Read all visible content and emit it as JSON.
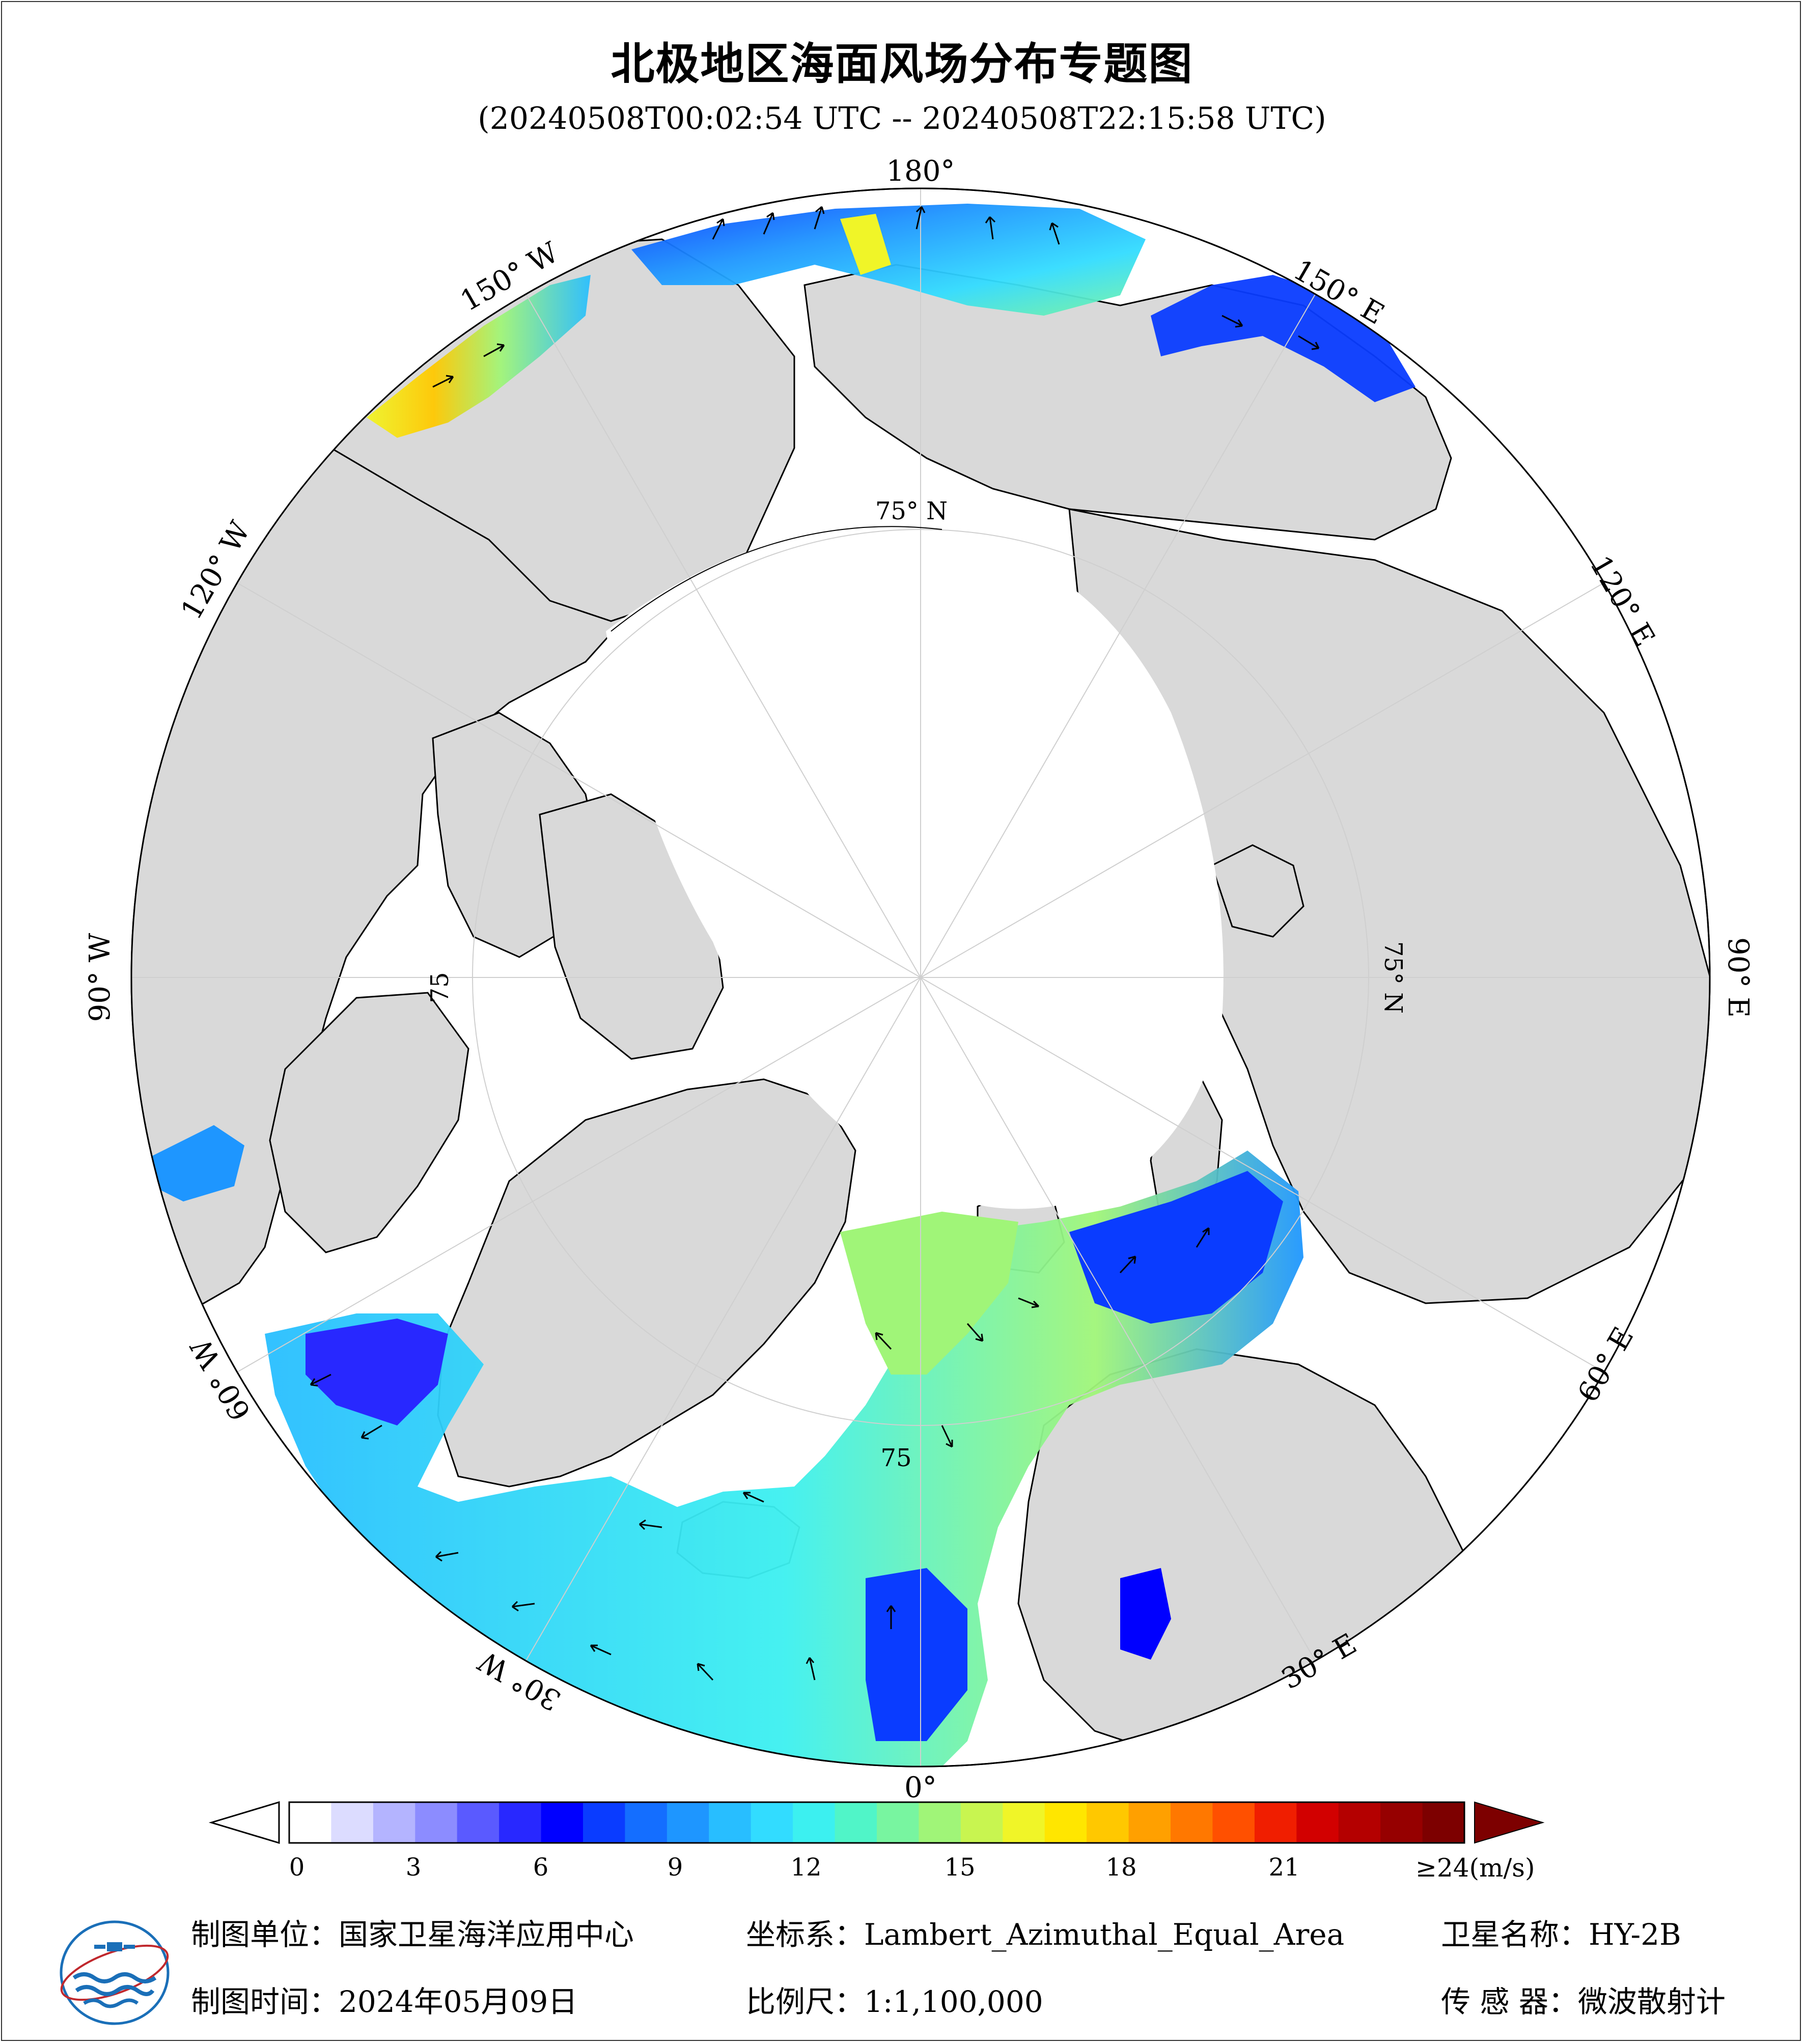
{
  "title": "北极地区海面风场分布专题图",
  "time_range": "(20240508T00:02:54 UTC -- 20240508T22:15:58 UTC)",
  "longitude_labels": {
    "lon_180": "180°",
    "lon_150e": "150° E",
    "lon_120e": "120° E",
    "lon_90e": "90° E",
    "lon_60e": "60° E",
    "lon_30e": "30° E",
    "lon_0": "0°",
    "lon_30w": "30° W",
    "lon_60w": "60° W",
    "lon_90w": "90° W",
    "lon_120w": "120° W",
    "lon_150w": "150° W"
  },
  "latitude_labels": {
    "lat_top": "75° N",
    "lat_right": "75° N",
    "lat_left": "75",
    "lat_bottom": "75"
  },
  "colorbar": {
    "ticks": [
      "0",
      "3",
      "6",
      "9",
      "12",
      "15",
      "18",
      "21"
    ],
    "max_label": "≥24",
    "unit": "(m/s)",
    "colors": [
      "#ffffff",
      "#dcdcff",
      "#b4b4ff",
      "#8c8cff",
      "#5a5aff",
      "#2828ff",
      "#0000ff",
      "#0a3cff",
      "#146eff",
      "#1e96ff",
      "#28beff",
      "#32dcff",
      "#3cf0f0",
      "#50f5c8",
      "#78f5a0",
      "#a0f578",
      "#c8f550",
      "#f0f528",
      "#ffe600",
      "#ffc800",
      "#ffa000",
      "#ff7800",
      "#ff5000",
      "#f01e00",
      "#d20000",
      "#b40000",
      "#960000",
      "#7d0000"
    ],
    "over_color": "#7d0000"
  },
  "footer": {
    "unit_label": "制图单位：",
    "unit_value": "国家卫星海洋应用中心",
    "coord_label": "坐标系：",
    "coord_value": "Lambert_Azimuthal_Equal_Area",
    "sat_label": "卫星名称：",
    "sat_value": "HY-2B",
    "date_label": "制图时间：",
    "date_value": "2024年05月09日",
    "scale_label": "比例尺：",
    "scale_value": "1:1,100,000",
    "sensor_label": "传 感 器：",
    "sensor_value": "微波散射计"
  },
  "colors": {
    "land": "#d9d9d9",
    "sea_ice": "#ffffff",
    "coast": "#000000",
    "graticule": "#cfcfcf"
  }
}
